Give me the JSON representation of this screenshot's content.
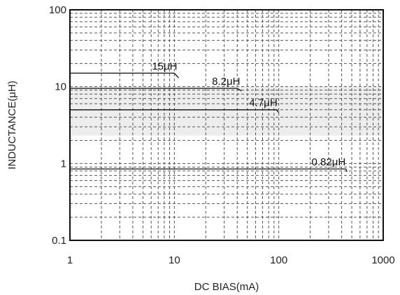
{
  "chart_data": {
    "type": "line",
    "title": "",
    "xlabel": "DC BIAS(mA)",
    "ylabel": "INDUCTANCE(μH)",
    "x_scale": "log",
    "y_scale": "log",
    "xlim": [
      1,
      1000
    ],
    "ylim": [
      0.1,
      100
    ],
    "x_ticks": [
      "1",
      "10",
      "100",
      "1000"
    ],
    "y_ticks": [
      "0.1",
      "1",
      "10",
      "100"
    ],
    "grid": true,
    "legend": "none",
    "series": [
      {
        "name": "15μH",
        "x": [
          1,
          10,
          11
        ],
        "y": [
          15,
          15,
          13
        ]
      },
      {
        "name": "8.2μH",
        "x": [
          1,
          40,
          44
        ],
        "y": [
          9.5,
          9.5,
          8.8
        ]
      },
      {
        "name": "4.7μH",
        "x": [
          1,
          95,
          100
        ],
        "y": [
          5,
          5,
          4.6
        ]
      },
      {
        "name": "0.82μH",
        "x": [
          1,
          440,
          450
        ],
        "y": [
          0.85,
          0.85,
          0.78
        ]
      }
    ]
  },
  "colors": {
    "plot_border": "#111111",
    "gridline": "#555555",
    "series_line": "#111111",
    "shaded_band": "#ededed"
  }
}
